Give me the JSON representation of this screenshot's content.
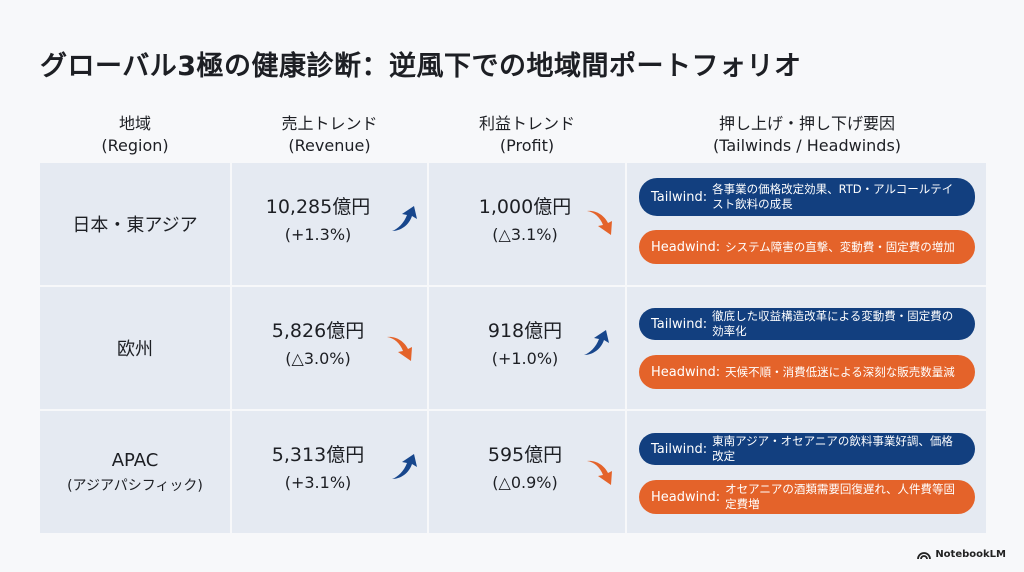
{
  "title": "グローバル3極の健康診断：逆風下での地域間ポートフォリオ",
  "headers": {
    "region": [
      "地域",
      "(Region)"
    ],
    "revenue": [
      "売上トレンド",
      "(Revenue)"
    ],
    "profit": [
      "利益トレンド",
      "(Profit)"
    ],
    "factors": [
      "押し上げ・押し下げ要因",
      "(Tailwinds / Headwinds)"
    ]
  },
  "colors": {
    "tailwind": "#123f7f",
    "headwind": "#e4632a",
    "cell": "#e5eaf2",
    "arrow_up": "#17468c",
    "arrow_down": "#e4632a"
  },
  "rows": [
    {
      "region": "日本・東アジア",
      "region_sub": "",
      "revenue": {
        "value": "10,285億円",
        "change": "(+1.3%)",
        "direction": "up"
      },
      "profit": {
        "value": "1,000億円",
        "change": "(△3.1%)",
        "direction": "down"
      },
      "tailwind": {
        "tag": "Tailwind:",
        "text": "各事業の価格改定効果、RTD・アルコールテイスト飲料の成長"
      },
      "headwind": {
        "tag": "Headwind:",
        "text": "システム障害の直撃、変動費・固定費の増加"
      }
    },
    {
      "region": "欧州",
      "region_sub": "",
      "revenue": {
        "value": "5,826億円",
        "change": "(△3.0%)",
        "direction": "down"
      },
      "profit": {
        "value": "918億円",
        "change": "(+1.0%)",
        "direction": "up"
      },
      "tailwind": {
        "tag": "Tailwind:",
        "text": "徹底した収益構造改革による変動費・固定費の効率化"
      },
      "headwind": {
        "tag": "Headwind:",
        "text": "天候不順・消費低迷による深刻な販売数量減"
      }
    },
    {
      "region": "APAC",
      "region_sub": "(アジアパシフィック)",
      "revenue": {
        "value": "5,313億円",
        "change": "(+3.1%)",
        "direction": "up"
      },
      "profit": {
        "value": "595億円",
        "change": "(△0.9%)",
        "direction": "down"
      },
      "tailwind": {
        "tag": "Tailwind:",
        "text": "東南アジア・オセアニアの飲料事業好調、価格改定"
      },
      "headwind": {
        "tag": "Headwind:",
        "text": "オセアニアの酒類需要回復遅れ、人件費等固定費増"
      }
    }
  ],
  "brand": "NotebookLM"
}
